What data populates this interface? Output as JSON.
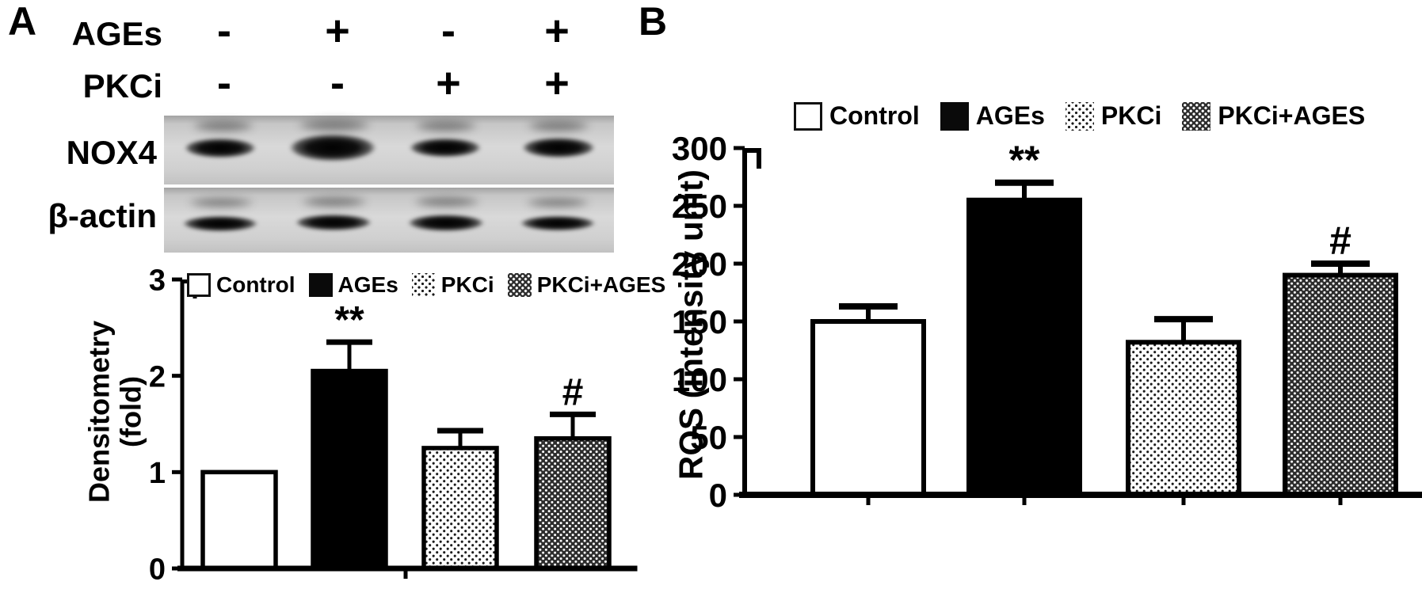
{
  "panel_a": {
    "label": "A",
    "conditions": {
      "rows": [
        {
          "label": "AGEs",
          "marks": [
            "-",
            "+",
            "-",
            "+"
          ]
        },
        {
          "label": "PKCi",
          "marks": [
            "-",
            "-",
            "+",
            "+"
          ]
        }
      ]
    },
    "blot": {
      "targets": [
        {
          "label": "NOX4",
          "bands": [
            "medium",
            "strong",
            "medium",
            "medium"
          ]
        },
        {
          "label": "β-actin",
          "bands": [
            "strong",
            "strong",
            "strong",
            "strong"
          ]
        }
      ]
    },
    "legend": {
      "items": [
        {
          "label": "Control",
          "pattern": "open"
        },
        {
          "label": "AGEs",
          "pattern": "solid"
        },
        {
          "label": "PKCi",
          "pattern": "dots"
        },
        {
          "label": "PKCi+AGES",
          "pattern": "checker"
        }
      ]
    }
  },
  "panel_b": {
    "label": "B",
    "legend": {
      "items": [
        {
          "label": "Control",
          "pattern": "open"
        },
        {
          "label": "AGEs",
          "pattern": "solid"
        },
        {
          "label": "PKCi",
          "pattern": "dots"
        },
        {
          "label": "PKCi+AGES",
          "pattern": "checker"
        }
      ]
    }
  },
  "chart_data": [
    {
      "panel": "A",
      "type": "bar",
      "title": "",
      "ylabel": "Densitometry (fold)",
      "categories": [
        "Control",
        "AGEs",
        "PKCi",
        "PKCi+AGES"
      ],
      "values": [
        1.0,
        2.05,
        1.25,
        1.35
      ],
      "errors": [
        0,
        0.3,
        0.18,
        0.25
      ],
      "significance": [
        "",
        "**",
        "",
        "#"
      ],
      "ylim": [
        0,
        3
      ],
      "yticks": [
        0,
        1,
        2,
        3
      ],
      "grid": false,
      "legend_position": "top-inside"
    },
    {
      "panel": "B",
      "type": "bar",
      "title": "",
      "ylabel": "ROS (intensity unit)",
      "categories": [
        "Control",
        "AGEs",
        "PKCi",
        "PKCi+AGES"
      ],
      "values": [
        150,
        255,
        132,
        190
      ],
      "errors": [
        13,
        15,
        20,
        10
      ],
      "significance": [
        "",
        "**",
        "",
        "#"
      ],
      "ylim": [
        0,
        300
      ],
      "yticks": [
        0,
        50,
        100,
        150,
        200,
        250,
        300
      ],
      "grid": false,
      "legend_position": "top"
    }
  ]
}
